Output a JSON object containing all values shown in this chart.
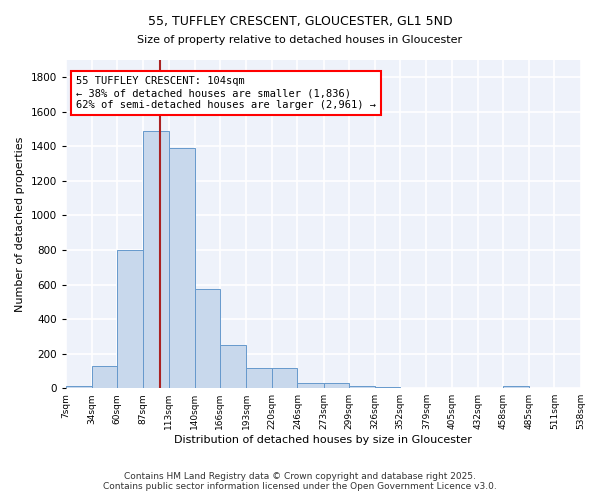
{
  "title": "55, TUFFLEY CRESCENT, GLOUCESTER, GL1 5ND",
  "subtitle": "Size of property relative to detached houses in Gloucester",
  "xlabel": "Distribution of detached houses by size in Gloucester",
  "ylabel": "Number of detached properties",
  "bin_edges": [
    7,
    34,
    60,
    87,
    113,
    140,
    166,
    193,
    220,
    246,
    273,
    299,
    326,
    352,
    379,
    405,
    432,
    458,
    485,
    511,
    538
  ],
  "bin_counts": [
    10,
    130,
    800,
    1490,
    1390,
    575,
    250,
    115,
    115,
    30,
    30,
    15,
    5,
    0,
    0,
    0,
    0,
    12,
    0,
    0
  ],
  "bar_color": "#c8d8ec",
  "bar_edge_color": "#6699cc",
  "property_size": 104,
  "vline_color": "#aa2222",
  "annotation_line1": "55 TUFFLEY CRESCENT: 104sqm",
  "annotation_line2": "← 38% of detached houses are smaller (1,836)",
  "annotation_line3": "62% of semi-detached houses are larger (2,961) →",
  "annotation_box_color": "white",
  "annotation_box_edge_color": "red",
  "background_color": "#eef2fa",
  "grid_color": "white",
  "ylim": [
    0,
    1900
  ],
  "yticks": [
    0,
    200,
    400,
    600,
    800,
    1000,
    1200,
    1400,
    1600,
    1800
  ],
  "footer_line1": "Contains HM Land Registry data © Crown copyright and database right 2025.",
  "footer_line2": "Contains public sector information licensed under the Open Government Licence v3.0."
}
